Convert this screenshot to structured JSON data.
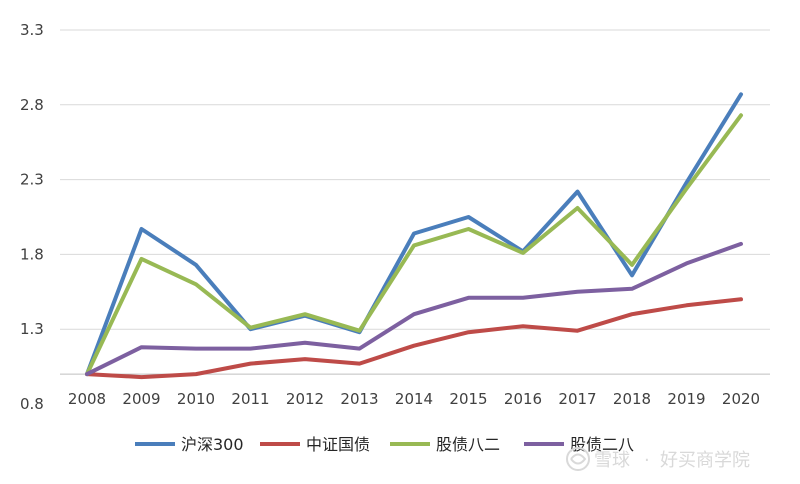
{
  "chart_data": {
    "type": "line",
    "title": "",
    "xlabel": "",
    "ylabel": "",
    "categories": [
      "2008",
      "2009",
      "2010",
      "2011",
      "2012",
      "2013",
      "2014",
      "2015",
      "2016",
      "2017",
      "2018",
      "2019",
      "2020"
    ],
    "ylim": [
      0.8,
      3.3
    ],
    "yticks": [
      "0.8",
      "1.3",
      "1.8",
      "2.3",
      "2.8",
      "3.3"
    ],
    "grid": "horizontal",
    "legend_position": "bottom",
    "series": [
      {
        "name": "沪深300",
        "color": "#4a7ebb",
        "values": [
          1.0,
          1.97,
          1.73,
          1.3,
          1.39,
          1.28,
          1.94,
          2.05,
          1.82,
          2.22,
          1.66,
          2.28,
          2.87
        ]
      },
      {
        "name": "中证国债",
        "color": "#be4b48",
        "values": [
          1.0,
          0.98,
          1.0,
          1.07,
          1.1,
          1.07,
          1.19,
          1.28,
          1.32,
          1.29,
          1.4,
          1.46,
          1.5
        ]
      },
      {
        "name": "股债八二",
        "color": "#98b954",
        "values": [
          1.0,
          1.77,
          1.6,
          1.31,
          1.4,
          1.29,
          1.86,
          1.97,
          1.81,
          2.11,
          1.73,
          2.24,
          2.73
        ]
      },
      {
        "name": "股债二八",
        "color": "#7d60a0",
        "values": [
          1.0,
          1.18,
          1.17,
          1.17,
          1.21,
          1.17,
          1.4,
          1.51,
          1.51,
          1.55,
          1.57,
          1.74,
          1.87
        ]
      }
    ]
  },
  "watermark": {
    "brand": "雪球",
    "separator": "·",
    "author": "好买商学院"
  }
}
